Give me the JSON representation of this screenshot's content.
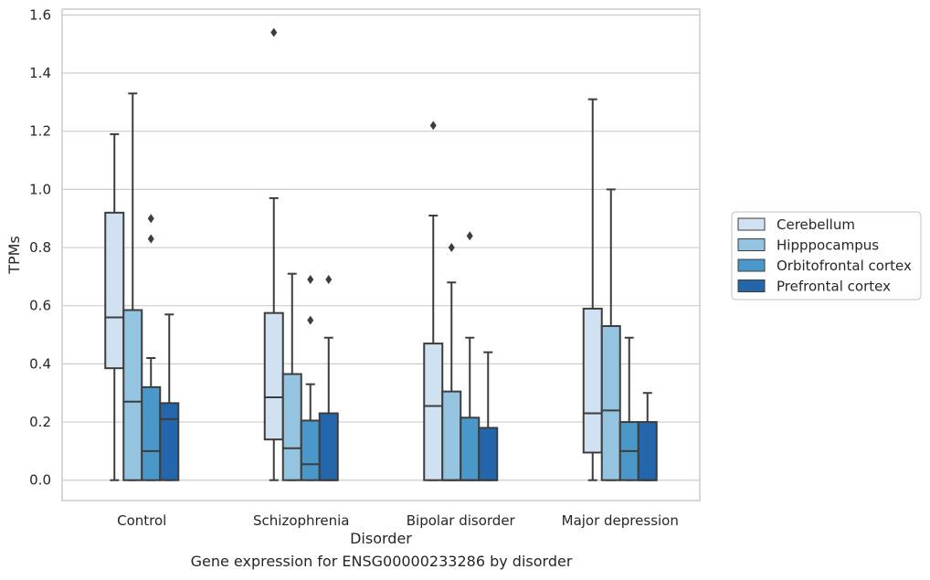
{
  "caption": "Gene expression for ENSG00000233286 by disorder",
  "chart_data": {
    "type": "box",
    "xlabel": "Disorder",
    "ylabel": "TPMs",
    "ylim": [
      -0.07,
      1.62
    ],
    "yticks": [
      0.0,
      0.2,
      0.4,
      0.6,
      0.8,
      1.0,
      1.2,
      1.4,
      1.6
    ],
    "ytick_labels": [
      "0.0",
      "0.2",
      "0.4",
      "0.6",
      "0.8",
      "1.0",
      "1.2",
      "1.4",
      "1.6"
    ],
    "grid": "horizontal",
    "legend_position": "right",
    "categories": [
      "Control",
      "Schizophrenia",
      "Bipolar disorder",
      "Major depression"
    ],
    "series": [
      {
        "name": "Cerebellum",
        "color": "#d0e1f2",
        "boxes": [
          {
            "whislo": 0.0,
            "q1": 0.385,
            "med": 0.56,
            "q3": 0.92,
            "whishi": 1.19,
            "fliers": []
          },
          {
            "whislo": 0.0,
            "q1": 0.14,
            "med": 0.285,
            "q3": 0.575,
            "whishi": 0.97,
            "fliers": [
              1.54
            ]
          },
          {
            "whislo": 0.0,
            "q1": 0.0,
            "med": 0.255,
            "q3": 0.47,
            "whishi": 0.91,
            "fliers": [
              1.22
            ]
          },
          {
            "whislo": 0.0,
            "q1": 0.095,
            "med": 0.23,
            "q3": 0.59,
            "whishi": 1.31,
            "fliers": []
          }
        ]
      },
      {
        "name": "Hipppocampus",
        "color": "#94c4df",
        "boxes": [
          {
            "whislo": 0.0,
            "q1": 0.0,
            "med": 0.27,
            "q3": 0.585,
            "whishi": 1.33,
            "fliers": []
          },
          {
            "whislo": 0.0,
            "q1": 0.0,
            "med": 0.11,
            "q3": 0.365,
            "whishi": 0.71,
            "fliers": []
          },
          {
            "whislo": 0.0,
            "q1": 0.0,
            "med": 0.0,
            "q3": 0.305,
            "whishi": 0.68,
            "fliers": [
              0.8
            ]
          },
          {
            "whislo": 0.0,
            "q1": 0.0,
            "med": 0.24,
            "q3": 0.53,
            "whishi": 1.0,
            "fliers": []
          }
        ]
      },
      {
        "name": "Orbitofrontal cortex",
        "color": "#4a98c9",
        "boxes": [
          {
            "whislo": 0.0,
            "q1": 0.0,
            "med": 0.1,
            "q3": 0.32,
            "whishi": 0.42,
            "fliers": [
              0.83,
              0.9
            ]
          },
          {
            "whislo": 0.0,
            "q1": 0.0,
            "med": 0.055,
            "q3": 0.205,
            "whishi": 0.33,
            "fliers": [
              0.55,
              0.69
            ]
          },
          {
            "whislo": 0.0,
            "q1": 0.0,
            "med": 0.0,
            "q3": 0.215,
            "whishi": 0.49,
            "fliers": [
              0.84
            ]
          },
          {
            "whislo": 0.0,
            "q1": 0.0,
            "med": 0.1,
            "q3": 0.2,
            "whishi": 0.49,
            "fliers": []
          }
        ]
      },
      {
        "name": "Prefrontal cortex",
        "color": "#2366ac",
        "boxes": [
          {
            "whislo": 0.0,
            "q1": 0.0,
            "med": 0.21,
            "q3": 0.265,
            "whishi": 0.57,
            "fliers": []
          },
          {
            "whislo": 0.0,
            "q1": 0.0,
            "med": 0.0,
            "q3": 0.23,
            "whishi": 0.49,
            "fliers": [
              0.69
            ]
          },
          {
            "whislo": 0.0,
            "q1": 0.0,
            "med": 0.0,
            "q3": 0.18,
            "whishi": 0.44,
            "fliers": []
          },
          {
            "whislo": 0.0,
            "q1": 0.0,
            "med": 0.0,
            "q3": 0.2,
            "whishi": 0.3,
            "fliers": []
          }
        ]
      }
    ]
  }
}
